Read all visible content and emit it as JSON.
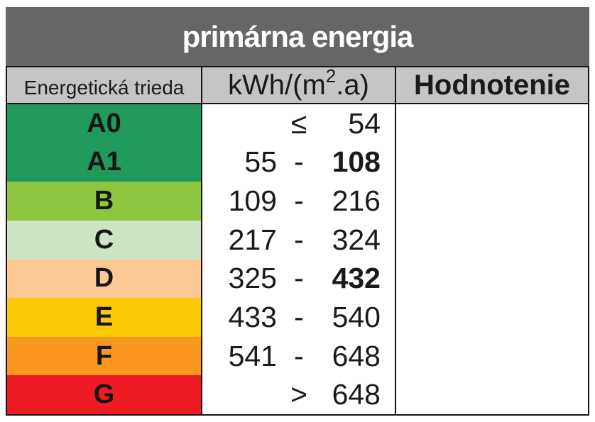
{
  "title": {
    "text": "primárna energia"
  },
  "header": {
    "class_column": "Energetická trieda",
    "unit_prefix": "kWh/(m",
    "unit_sup": "2",
    "unit_suffix": ".a)",
    "rating_column": "Hodnotenie"
  },
  "colors": {
    "title_bar_bg": "#666667",
    "header_bg": "#c5c5c7",
    "border": "#161616",
    "class_a": "#20995d",
    "class_b": "#8fc63f",
    "class_c": "#cde5c4",
    "class_d": "#fcc894",
    "class_e": "#fbc906",
    "class_f": "#f8961d",
    "class_g": "#ed1c23"
  },
  "rows": [
    {
      "label": "A0",
      "lower": "",
      "sep": "≤",
      "upper": "54",
      "upper_weight": "normal",
      "color": "#20995d"
    },
    {
      "label": "A1",
      "lower": "55",
      "sep": "-",
      "upper": "108",
      "upper_weight": "bold",
      "color": "#20995d"
    },
    {
      "label": "B",
      "lower": "109",
      "sep": "-",
      "upper": "216",
      "upper_weight": "normal",
      "color": "#8fc63f"
    },
    {
      "label": "C",
      "lower": "217",
      "sep": "-",
      "upper": "324",
      "upper_weight": "normal",
      "color": "#cde5c4"
    },
    {
      "label": "D",
      "lower": "325",
      "sep": "-",
      "upper": "432",
      "upper_weight": "bold",
      "color": "#fcc894"
    },
    {
      "label": "E",
      "lower": "433",
      "sep": "-",
      "upper": "540",
      "upper_weight": "normal",
      "color": "#fbc906"
    },
    {
      "label": "F",
      "lower": "541",
      "sep": "-",
      "upper": "648",
      "upper_weight": "normal",
      "color": "#f8961d"
    },
    {
      "label": "G",
      "lower": "",
      "sep": ">",
      "upper": "648",
      "upper_weight": "normal",
      "color": "#ed1c23"
    }
  ]
}
